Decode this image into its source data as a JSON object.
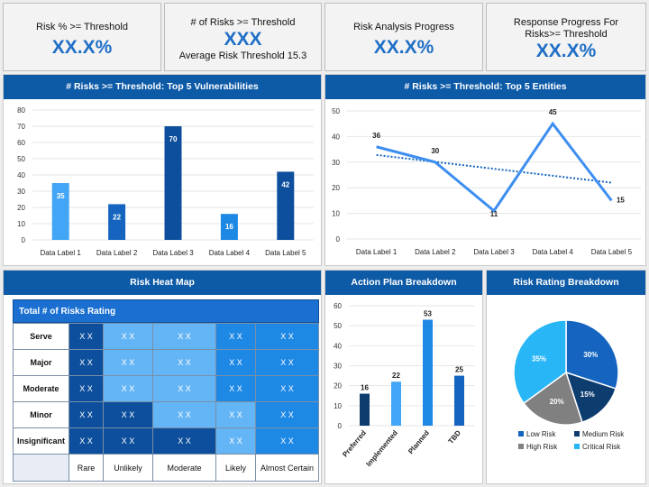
{
  "kpis": [
    {
      "label": "Risk % >= Threshold",
      "value": "XX.X%",
      "sub": ""
    },
    {
      "label": "# of Risks >= Threshold",
      "value": "XXX",
      "sub": "Average Risk Threshold 15.3"
    },
    {
      "label": "Risk Analysis Progress",
      "value": "XX.X%",
      "sub": ""
    },
    {
      "label": "Response Progress For Risks>= Threshold",
      "value": "XX.X%",
      "sub": ""
    }
  ],
  "chart_data": [
    {
      "type": "bar",
      "title": "# Risks >= Threshold: Top 5 Vulnerabilities",
      "categories": [
        "Data Label 1",
        "Data Label 2",
        "Data Label 3",
        "Data Label 4",
        "Data Label 5"
      ],
      "values": [
        35,
        22,
        70,
        16,
        42
      ],
      "ylim": [
        0,
        80
      ],
      "yticks": [
        0,
        10,
        20,
        30,
        40,
        50,
        60,
        70,
        80
      ],
      "colors": [
        "#42a5f5",
        "#1565c0",
        "#0d4f9c",
        "#1e88e5",
        "#0d4f9c"
      ]
    },
    {
      "type": "line",
      "title": "# Risks >= Threshold: Top 5 Entities",
      "categories": [
        "Data Label 1",
        "Data Label 2",
        "Data Label 3",
        "Data Label 4",
        "Data Label 5"
      ],
      "values": [
        36,
        30,
        11,
        45,
        15
      ],
      "trendline": true,
      "ylim": [
        0,
        50
      ],
      "yticks": [
        0,
        10,
        20,
        30,
        40,
        50
      ],
      "colors": [
        "#3d8ef0"
      ]
    },
    {
      "type": "bar",
      "title": "Action Plan Breakdown",
      "categories": [
        "Preferred",
        "Implemented",
        "Planned",
        "TBD"
      ],
      "values": [
        16,
        22,
        53,
        25
      ],
      "ylim": [
        0,
        60
      ],
      "yticks": [
        0,
        10,
        20,
        30,
        40,
        50,
        60
      ],
      "colors": [
        "#0d3c6e",
        "#42a5f5",
        "#1e88e5",
        "#1565c0"
      ]
    },
    {
      "type": "pie",
      "title": "Risk Rating Breakdown",
      "labels": [
        "Low Risk",
        "Medium Risk",
        "High Risk",
        "Critical Risk"
      ],
      "values": [
        30,
        15,
        20,
        35
      ],
      "value_labels": [
        "30%",
        "15%",
        "20%",
        "35%"
      ],
      "colors": [
        "#1565c0",
        "#0d3c6e",
        "#808080",
        "#29b6f6"
      ],
      "legend": "bottom"
    }
  ],
  "heatmap": {
    "title": "Risk Heat Map",
    "table_title": "Total # of Risks Rating",
    "rows": [
      "Serve",
      "Major",
      "Moderate",
      "Minor",
      "Insignificant"
    ],
    "cols": [
      "Rare",
      "Unlikely",
      "Moderate",
      "Likely",
      "Almost Certain"
    ],
    "cell": "X X",
    "levels": [
      [
        "dark",
        "light",
        "light",
        "mid",
        "mid"
      ],
      [
        "dark",
        "light",
        "light",
        "mid",
        "mid"
      ],
      [
        "dark",
        "light",
        "light",
        "mid",
        "mid"
      ],
      [
        "dark",
        "dark",
        "light",
        "light",
        "mid"
      ],
      [
        "dark",
        "dark",
        "dark",
        "light",
        "mid"
      ]
    ]
  }
}
